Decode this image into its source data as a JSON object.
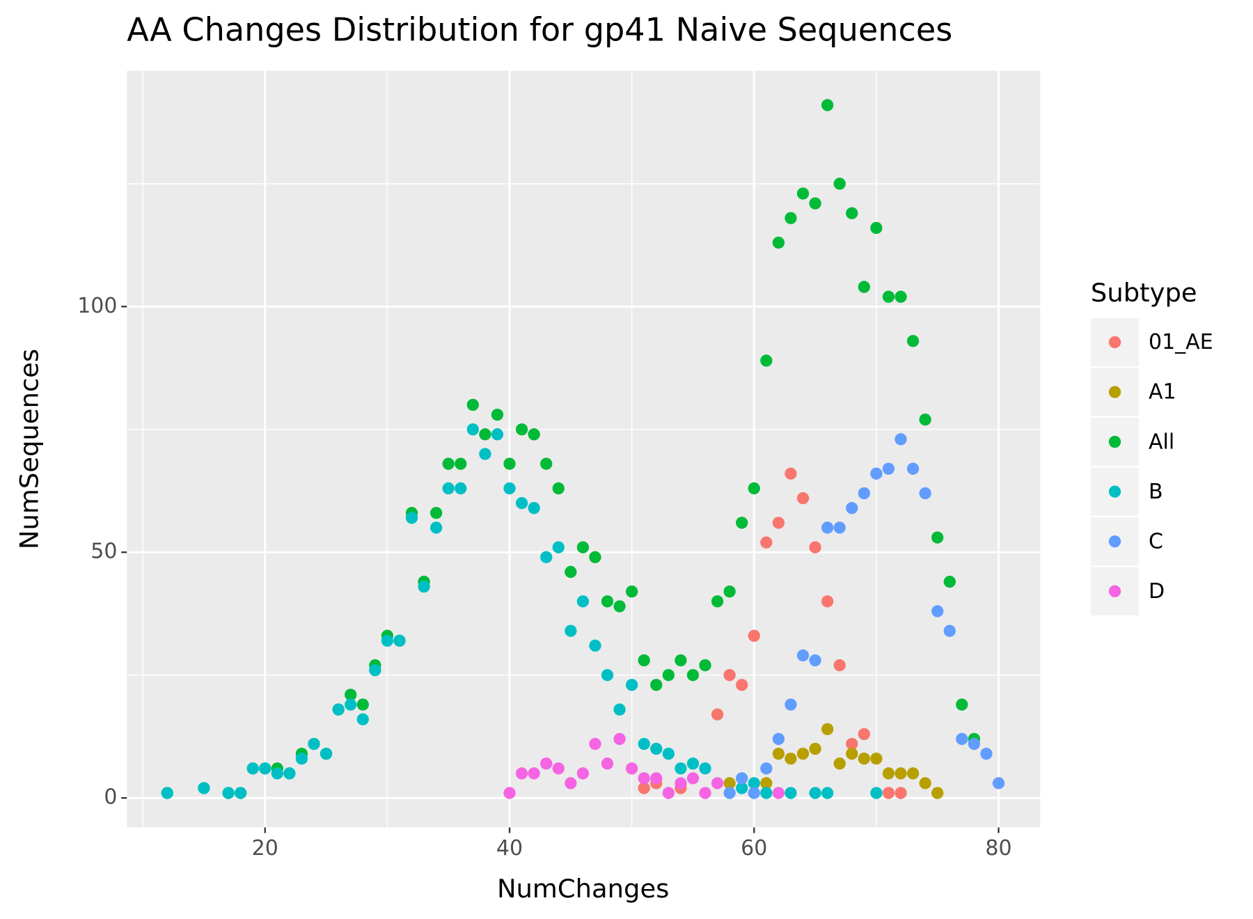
{
  "chart_data": {
    "type": "scatter",
    "title": "AA Changes Distribution for gp41 Naive Sequences",
    "x_label": "NumChanges",
    "y_label": "NumSequences",
    "legend_title": "Subtype",
    "legend_position": "right",
    "grid": true,
    "xlim": [
      8.7,
      83.4
    ],
    "ylim": [
      -6,
      148
    ],
    "xticks": [
      20,
      40,
      60,
      80
    ],
    "yticks": [
      0,
      50,
      100
    ],
    "series": [
      {
        "name": "01_AE",
        "color": "#F8766D",
        "x": [
          51,
          52,
          54,
          57,
          58,
          59,
          60,
          61,
          62,
          63,
          64,
          65,
          66,
          67,
          68,
          69,
          71,
          72
        ],
        "values": [
          2,
          3,
          2,
          17,
          25,
          23,
          33,
          52,
          56,
          66,
          61,
          51,
          40,
          27,
          11,
          13,
          1,
          1
        ]
      },
      {
        "name": "A1",
        "color": "#B79F00",
        "x": [
          58,
          61,
          62,
          63,
          64,
          65,
          66,
          67,
          68,
          69,
          70,
          71,
          72,
          73,
          74,
          75
        ],
        "values": [
          3,
          3,
          9,
          8,
          9,
          10,
          14,
          7,
          9,
          8,
          8,
          5,
          5,
          5,
          3,
          1
        ]
      },
      {
        "name": "All",
        "color": "#00BA38",
        "x": [
          12,
          15,
          17,
          18,
          19,
          20,
          21,
          22,
          23,
          24,
          25,
          26,
          27,
          28,
          29,
          30,
          31,
          32,
          33,
          34,
          35,
          36,
          37,
          38,
          39,
          40,
          41,
          42,
          43,
          44,
          45,
          46,
          47,
          48,
          49,
          50,
          51,
          52,
          53,
          54,
          55,
          56,
          57,
          58,
          59,
          60,
          61,
          62,
          63,
          64,
          65,
          66,
          67,
          68,
          69,
          70,
          71,
          72,
          73,
          74,
          75,
          76,
          77,
          78
        ],
        "values": [
          1,
          2,
          1,
          1,
          6,
          6,
          6,
          5,
          9,
          11,
          9,
          18,
          21,
          19,
          27,
          33,
          32,
          58,
          44,
          58,
          68,
          68,
          80,
          74,
          78,
          68,
          75,
          74,
          68,
          63,
          46,
          51,
          49,
          40,
          39,
          42,
          28,
          23,
          25,
          28,
          25,
          27,
          40,
          42,
          56,
          63,
          89,
          113,
          118,
          123,
          121,
          141,
          125,
          119,
          104,
          116,
          102,
          102,
          93,
          77,
          53,
          44,
          19,
          12
        ]
      },
      {
        "name": "B",
        "color": "#00BFC4",
        "x": [
          12,
          15,
          17,
          18,
          19,
          20,
          21,
          22,
          23,
          24,
          25,
          26,
          27,
          28,
          29,
          30,
          31,
          32,
          33,
          34,
          35,
          36,
          37,
          38,
          39,
          40,
          41,
          42,
          43,
          44,
          45,
          46,
          47,
          48,
          49,
          50,
          51,
          52,
          53,
          54,
          55,
          56,
          59,
          60,
          61,
          63,
          65,
          66,
          70
        ],
        "values": [
          1,
          2,
          1,
          1,
          6,
          6,
          5,
          5,
          8,
          11,
          9,
          18,
          19,
          16,
          26,
          32,
          32,
          57,
          43,
          55,
          63,
          63,
          75,
          70,
          74,
          63,
          60,
          59,
          49,
          51,
          34,
          40,
          31,
          25,
          18,
          23,
          11,
          10,
          9,
          6,
          7,
          6,
          2,
          3,
          1,
          1,
          1,
          1,
          1
        ]
      },
      {
        "name": "C",
        "color": "#619CFF",
        "x": [
          58,
          59,
          60,
          61,
          62,
          63,
          64,
          65,
          66,
          67,
          68,
          69,
          70,
          71,
          72,
          73,
          74,
          75,
          76,
          77,
          78,
          79,
          80
        ],
        "values": [
          1,
          4,
          1,
          6,
          12,
          19,
          29,
          28,
          55,
          55,
          59,
          62,
          66,
          67,
          73,
          67,
          62,
          38,
          34,
          12,
          11,
          9,
          3
        ]
      },
      {
        "name": "D",
        "color": "#F564E3",
        "x": [
          40,
          41,
          42,
          43,
          44,
          45,
          46,
          47,
          48,
          49,
          50,
          51,
          52,
          53,
          54,
          55,
          56,
          57,
          62
        ],
        "values": [
          1,
          5,
          5,
          7,
          6,
          3,
          5,
          11,
          7,
          12,
          6,
          4,
          4,
          1,
          3,
          4,
          1,
          3,
          1
        ]
      }
    ]
  }
}
